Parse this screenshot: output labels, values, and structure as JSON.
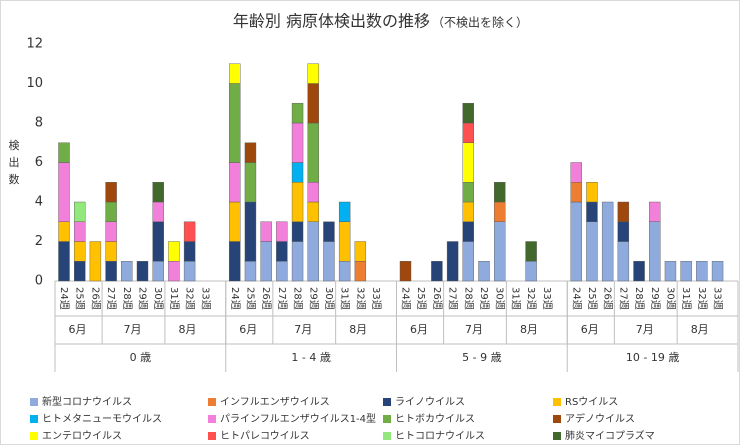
{
  "chart_data": {
    "type": "bar",
    "stacked": true,
    "title": "年齢別 病原体検出数の推移",
    "subtitle": "（不検出を除く）",
    "y_label": "検出数",
    "groups": [
      {
        "label": "0 歳",
        "months": [
          {
            "label": "6月",
            "weeks": [
              "24週",
              "25週",
              "26週"
            ]
          },
          {
            "label": "7月",
            "weeks": [
              "27週",
              "28週",
              "29週",
              "30週"
            ]
          },
          {
            "label": "8月",
            "weeks": [
              "31週",
              "32週",
              "33週"
            ]
          }
        ]
      },
      {
        "label": "1 - 4 歳",
        "months": [
          {
            "label": "6月",
            "weeks": [
              "24週",
              "25週",
              "26週"
            ]
          },
          {
            "label": "7月",
            "weeks": [
              "27週",
              "28週",
              "29週",
              "30週"
            ]
          },
          {
            "label": "8月",
            "weeks": [
              "31週",
              "32週",
              "33週"
            ]
          }
        ]
      },
      {
        "label": "5 - 9 歳",
        "months": [
          {
            "label": "6月",
            "weeks": [
              "24週",
              "25週",
              "26週"
            ]
          },
          {
            "label": "7月",
            "weeks": [
              "27週",
              "28週",
              "29週",
              "30週"
            ]
          },
          {
            "label": "8月",
            "weeks": [
              "31週",
              "32週",
              "33週"
            ]
          }
        ]
      },
      {
        "label": "10 - 19 歳",
        "months": [
          {
            "label": "6月",
            "weeks": [
              "24週",
              "25週",
              "26週"
            ]
          },
          {
            "label": "7月",
            "weeks": [
              "27週",
              "28週",
              "29週",
              "30週"
            ]
          },
          {
            "label": "8月",
            "weeks": [
              "31週",
              "32週",
              "33週"
            ]
          }
        ]
      }
    ],
    "ylim": [
      0,
      12
    ],
    "yticks": [
      0,
      2,
      4,
      6,
      8,
      10,
      12
    ],
    "series": [
      {
        "name": "新型コロナウイルス",
        "color": "#8faadc",
        "values": [
          0,
          0,
          0,
          0,
          1,
          0,
          1,
          0,
          1,
          0,
          0,
          1,
          2,
          1,
          2,
          3,
          2,
          1,
          0,
          0,
          0,
          0,
          0,
          0,
          2,
          1,
          3,
          0,
          1,
          0,
          4,
          3,
          4,
          2,
          0,
          3,
          1,
          1,
          1,
          1
        ]
      },
      {
        "name": "インフルエンザウイルス",
        "color": "#ed7d31",
        "values": [
          0,
          0,
          0,
          0,
          0,
          0,
          0,
          0,
          0,
          0,
          0,
          0,
          0,
          0,
          0,
          0,
          0,
          0,
          1,
          0,
          0,
          0,
          0,
          0,
          0,
          0,
          1,
          0,
          0,
          0,
          1,
          0,
          0,
          0,
          0,
          0,
          0,
          0,
          0,
          0
        ]
      },
      {
        "name": "ライノウイルス",
        "color": "#264478",
        "values": [
          2,
          1,
          0,
          1,
          0,
          1,
          2,
          0,
          1,
          0,
          2,
          3,
          0,
          1,
          1,
          0,
          1,
          0,
          0,
          0,
          0,
          0,
          1,
          2,
          1,
          0,
          0,
          0,
          0,
          0,
          0,
          1,
          0,
          1,
          1,
          0,
          0,
          0,
          0,
          0
        ]
      },
      {
        "name": "RSウイルス",
        "color": "#ffc000",
        "values": [
          1,
          1,
          2,
          1,
          0,
          0,
          0,
          0,
          0,
          0,
          2,
          0,
          0,
          0,
          2,
          1,
          0,
          2,
          1,
          0,
          0,
          0,
          0,
          0,
          1,
          0,
          0,
          0,
          0,
          0,
          0,
          1,
          0,
          0,
          0,
          0,
          0,
          0,
          0,
          0
        ]
      },
      {
        "name": "ヒトメタニューモウイルス",
        "color": "#00b0f0",
        "values": [
          0,
          0,
          0,
          0,
          0,
          0,
          0,
          0,
          0,
          0,
          0,
          0,
          0,
          0,
          1,
          0,
          0,
          1,
          0,
          0,
          0,
          0,
          0,
          0,
          0,
          0,
          0,
          0,
          0,
          0,
          0,
          0,
          0,
          0,
          0,
          0,
          0,
          0,
          0,
          0
        ]
      },
      {
        "name": "パラインフルエンザウイルス1-4型",
        "color": "#f27fd9",
        "values": [
          3,
          1,
          0,
          1,
          0,
          0,
          1,
          1,
          0,
          0,
          2,
          0,
          1,
          1,
          2,
          1,
          0,
          0,
          0,
          0,
          0,
          0,
          0,
          0,
          0,
          0,
          0,
          0,
          0,
          0,
          1,
          0,
          0,
          0,
          0,
          1,
          0,
          0,
          0,
          0
        ]
      },
      {
        "name": "ヒトボカウイルス",
        "color": "#70ad47",
        "values": [
          1,
          0,
          0,
          1,
          0,
          0,
          0,
          0,
          0,
          0,
          4,
          2,
          0,
          0,
          1,
          3,
          0,
          0,
          0,
          0,
          0,
          0,
          0,
          0,
          1,
          0,
          0,
          0,
          0,
          0,
          0,
          0,
          0,
          0,
          0,
          0,
          0,
          0,
          0,
          0
        ]
      },
      {
        "name": "アデノウイルス",
        "color": "#9e480e",
        "values": [
          0,
          0,
          0,
          1,
          0,
          0,
          0,
          0,
          0,
          0,
          0,
          1,
          0,
          0,
          0,
          2,
          0,
          0,
          0,
          0,
          1,
          0,
          0,
          0,
          0,
          0,
          0,
          0,
          0,
          0,
          0,
          0,
          0,
          1,
          0,
          0,
          0,
          0,
          0,
          0
        ]
      },
      {
        "name": "エンテロウイルス",
        "color": "#ffff00",
        "values": [
          0,
          0,
          0,
          0,
          0,
          0,
          0,
          1,
          0,
          0,
          1,
          0,
          0,
          0,
          0,
          1,
          0,
          0,
          0,
          0,
          0,
          0,
          0,
          0,
          2,
          0,
          0,
          0,
          0,
          0,
          0,
          0,
          0,
          0,
          0,
          0,
          0,
          0,
          0,
          0
        ]
      },
      {
        "name": "ヒトパレコウイルス",
        "color": "#ff5050",
        "values": [
          0,
          0,
          0,
          0,
          0,
          0,
          0,
          0,
          1,
          0,
          0,
          0,
          0,
          0,
          0,
          0,
          0,
          0,
          0,
          0,
          0,
          0,
          0,
          0,
          1,
          0,
          0,
          0,
          0,
          0,
          0,
          0,
          0,
          0,
          0,
          0,
          0,
          0,
          0,
          0
        ]
      },
      {
        "name": "ヒトコロナウイルス",
        "color": "#92e87c",
        "values": [
          0,
          1,
          0,
          0,
          0,
          0,
          0,
          0,
          0,
          0,
          0,
          0,
          0,
          0,
          0,
          0,
          0,
          0,
          0,
          0,
          0,
          0,
          0,
          0,
          0,
          0,
          0,
          0,
          0,
          0,
          0,
          0,
          0,
          0,
          0,
          0,
          0,
          0,
          0,
          0
        ]
      },
      {
        "name": "肺炎マイコプラズマ",
        "color": "#43682b",
        "values": [
          0,
          0,
          0,
          0,
          0,
          0,
          1,
          0,
          0,
          0,
          0,
          0,
          0,
          0,
          0,
          0,
          0,
          0,
          0,
          0,
          0,
          0,
          0,
          0,
          1,
          0,
          1,
          0,
          1,
          0,
          0,
          0,
          0,
          0,
          0,
          0,
          0,
          0,
          0,
          0
        ]
      }
    ]
  }
}
